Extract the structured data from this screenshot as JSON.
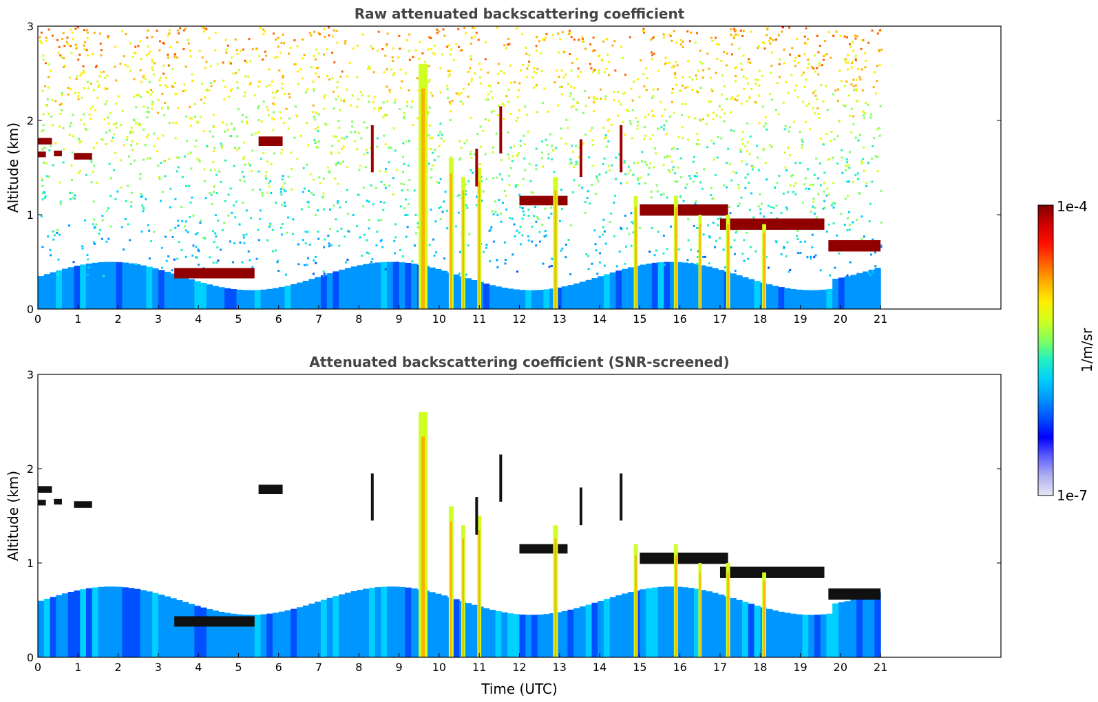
{
  "chart_data": [
    {
      "type": "heatmap",
      "title": "Raw attenuated backscattering coefficient",
      "xlabel": "",
      "ylabel": "Altitude (km)",
      "xlim": [
        0,
        24
      ],
      "ylim": [
        0,
        3
      ],
      "x_ticks": [
        "0",
        "1",
        "2",
        "3",
        "4",
        "5",
        "6",
        "7",
        "8",
        "9",
        "10",
        "11",
        "12",
        "13",
        "14",
        "15",
        "16",
        "17",
        "18",
        "19",
        "20",
        "21"
      ],
      "y_ticks": [
        "0",
        "1",
        "2",
        "3"
      ],
      "data_extent_hours": 21,
      "noise": "high",
      "features": [
        {
          "kind": "layer",
          "t0": 0.0,
          "t1": 0.35,
          "z": 1.78,
          "dz": 0.07
        },
        {
          "kind": "layer",
          "t0": 0.0,
          "t1": 0.2,
          "z": 1.64,
          "dz": 0.06
        },
        {
          "kind": "layer",
          "t0": 0.4,
          "t1": 0.6,
          "z": 1.65,
          "dz": 0.06
        },
        {
          "kind": "layer",
          "t0": 0.9,
          "t1": 1.35,
          "z": 1.62,
          "dz": 0.07
        },
        {
          "kind": "layer",
          "t0": 3.4,
          "t1": 5.4,
          "z": 0.38,
          "dz": 0.11
        },
        {
          "kind": "layer",
          "t0": 5.5,
          "t1": 6.1,
          "z": 1.78,
          "dz": 0.1
        },
        {
          "kind": "layer",
          "t0": 19.7,
          "t1": 21.0,
          "z": 0.67,
          "dz": 0.12
        },
        {
          "kind": "layer",
          "t0": 17.0,
          "t1": 19.6,
          "z": 0.9,
          "dz": 0.12
        },
        {
          "kind": "layer",
          "t0": 15.0,
          "t1": 17.2,
          "z": 1.05,
          "dz": 0.12
        },
        {
          "kind": "layer",
          "t0": 12.0,
          "t1": 13.2,
          "z": 1.15,
          "dz": 0.1
        },
        {
          "kind": "column",
          "t": 9.6,
          "w": 0.22,
          "ztop": 2.6
        },
        {
          "kind": "column",
          "t": 10.3,
          "w": 0.12,
          "ztop": 1.6
        },
        {
          "kind": "column",
          "t": 10.6,
          "w": 0.1,
          "ztop": 1.4
        },
        {
          "kind": "column",
          "t": 11.0,
          "w": 0.1,
          "ztop": 1.5
        },
        {
          "kind": "column",
          "t": 12.9,
          "w": 0.12,
          "ztop": 1.4
        },
        {
          "kind": "column",
          "t": 14.9,
          "w": 0.1,
          "ztop": 1.2
        },
        {
          "kind": "column",
          "t": 15.9,
          "w": 0.1,
          "ztop": 1.2
        },
        {
          "kind": "column",
          "t": 16.5,
          "w": 0.08,
          "ztop": 1.0
        },
        {
          "kind": "column",
          "t": 17.2,
          "w": 0.1,
          "ztop": 1.0
        },
        {
          "kind": "column",
          "t": 18.1,
          "w": 0.1,
          "ztop": 0.9
        },
        {
          "kind": "streak",
          "t": 8.3,
          "z": 1.7,
          "len": 0.5
        },
        {
          "kind": "streak",
          "t": 10.9,
          "z": 1.5,
          "len": 0.4
        },
        {
          "kind": "streak",
          "t": 11.5,
          "z": 1.9,
          "len": 0.5
        },
        {
          "kind": "streak",
          "t": 13.5,
          "z": 1.6,
          "len": 0.4
        },
        {
          "kind": "streak",
          "t": 14.5,
          "z": 1.7,
          "len": 0.5
        }
      ]
    },
    {
      "type": "heatmap",
      "title": "Attenuated backscattering coefficient (SNR-screened)",
      "xlabel": "Time (UTC)",
      "ylabel": "Altitude (km)",
      "xlim": [
        0,
        24
      ],
      "ylim": [
        0,
        3
      ],
      "x_ticks": [
        "0",
        "1",
        "2",
        "3",
        "4",
        "5",
        "6",
        "7",
        "8",
        "9",
        "10",
        "11",
        "12",
        "13",
        "14",
        "15",
        "16",
        "17",
        "18",
        "19",
        "20",
        "21"
      ],
      "y_ticks": [
        "0",
        "1",
        "2",
        "3"
      ],
      "data_extent_hours": 21,
      "noise": "screened",
      "boundary_layer_top_km": 0.6
    }
  ],
  "colorbar": {
    "label": "1/m/sr",
    "max_label": "1e-4",
    "min_label": "1e-7",
    "scale": "log",
    "range": [
      1e-07,
      0.0001
    ],
    "colors": [
      "#e6e6f5",
      "#b0b0f0",
      "#6060ff",
      "#0000ff",
      "#0050ff",
      "#0096ff",
      "#00d0ff",
      "#20f0c0",
      "#80ff60",
      "#d0ff20",
      "#ffee00",
      "#ffb000",
      "#ff6000",
      "#ff1000",
      "#d00000",
      "#800000"
    ]
  }
}
